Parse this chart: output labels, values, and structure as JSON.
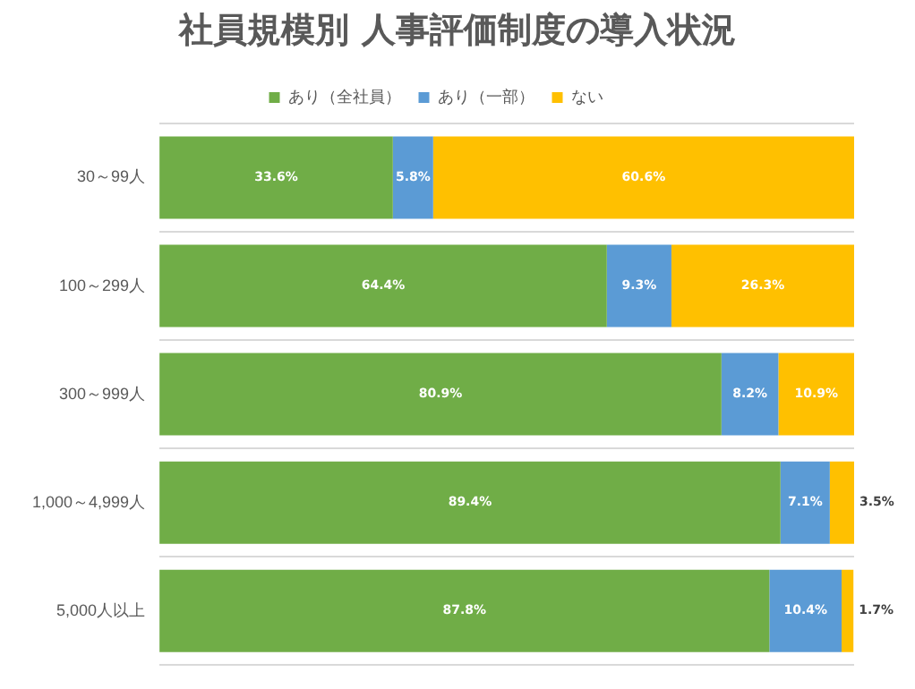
{
  "chart_data": {
    "type": "bar",
    "orientation": "horizontal",
    "stacked": true,
    "title": "社員規模別 人事評価制度の導入状況",
    "categories": [
      "30～99人",
      "100～299人",
      "300～999人",
      "1,000～4,999人",
      "5,000人以上"
    ],
    "series": [
      {
        "name": "あり（全社員）",
        "color": "#70ad47",
        "values": [
          33.6,
          64.4,
          80.9,
          89.4,
          87.8
        ],
        "value_labels": [
          "33.6%",
          "64.4%",
          "80.9%",
          "89.4%",
          "87.8%"
        ]
      },
      {
        "name": "あり（一部）",
        "color": "#5b9bd5",
        "values": [
          5.8,
          9.3,
          8.2,
          7.1,
          10.4
        ],
        "value_labels": [
          "5.8%",
          "9.3%",
          "8.2%",
          "7.1%",
          "10.4%"
        ]
      },
      {
        "name": "ない",
        "color": "#ffc000",
        "values": [
          60.6,
          26.3,
          10.9,
          3.5,
          1.7
        ],
        "value_labels": [
          "60.6%",
          "26.3%",
          "10.9%",
          "3.5%",
          "1.7%"
        ]
      }
    ],
    "grid": "y",
    "legend": "top",
    "tick_labels": "y"
  }
}
